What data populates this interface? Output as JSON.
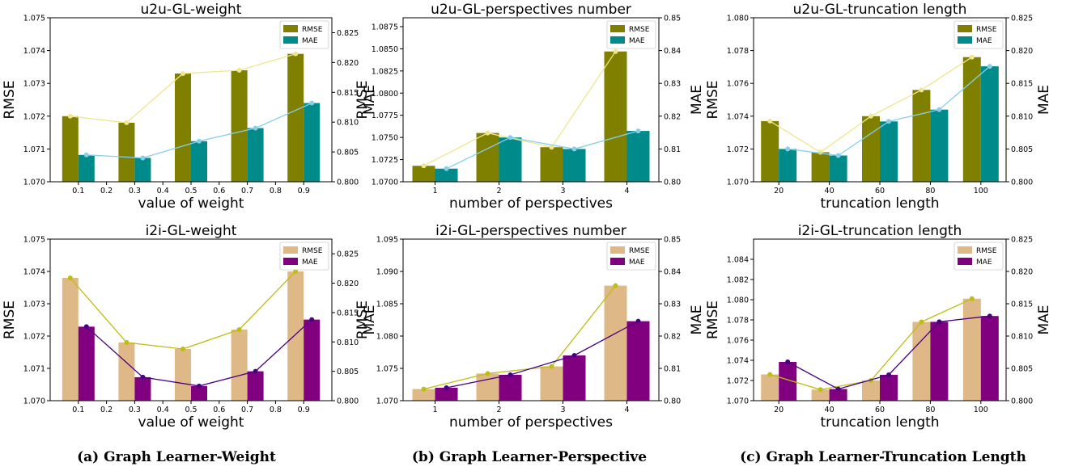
{
  "chart_data": [
    {
      "type": "bar",
      "title": "u2u-GL-weight",
      "xlabel": "value of weight",
      "ylabel": "RMSE",
      "y2label": "MAE",
      "x": [
        0.1,
        0.3,
        0.5,
        0.7,
        0.9
      ],
      "x_ticks": [
        "0.1",
        "0.2",
        "0.3",
        "0.4",
        "0.5",
        "0.6",
        "0.7",
        "0.8",
        "0.9"
      ],
      "x_range": [
        0,
        1.0
      ],
      "ylim": [
        1.07,
        1.075
      ],
      "y_ticks": [
        "1.070",
        "1.071",
        "1.072",
        "1.073",
        "1.074",
        "1.075"
      ],
      "y2lim": [
        0.8,
        0.8275
      ],
      "y2_ticks": [
        "0.800",
        "0.805",
        "0.810",
        "0.815",
        "0.820",
        "0.825"
      ],
      "series": [
        {
          "name": "RMSE",
          "axis": "left",
          "color": "#808000",
          "values": [
            1.072,
            1.0718,
            1.0733,
            1.0734,
            1.0739
          ],
          "line": [
            1.072,
            1.0718,
            1.0733,
            1.0734,
            1.0739
          ],
          "line_color": "#f0e68c"
        },
        {
          "name": "MAE",
          "axis": "right",
          "color": "#008b8b",
          "values": [
            0.8045,
            0.804,
            0.8068,
            0.809,
            0.8132
          ],
          "line": [
            0.8045,
            0.804,
            0.8068,
            0.809,
            0.8132
          ],
          "line_color": "#87ceeb"
        }
      ],
      "legend": "top-right",
      "grid": false
    },
    {
      "type": "bar",
      "title": "u2u-GL-perspectives number",
      "xlabel": "number of perspectives",
      "ylabel": "RMSE",
      "y2label": "MAE",
      "x": [
        1,
        2,
        3,
        4
      ],
      "x_ticks": [
        "1",
        "2",
        "3",
        "4"
      ],
      "x_range": [
        0.5,
        4.5
      ],
      "ylim": [
        1.07,
        1.0885
      ],
      "y_ticks": [
        "1.0700",
        "1.0725",
        "1.0750",
        "1.0775",
        "1.0800",
        "1.0825",
        "1.0850",
        "1.0875"
      ],
      "y2lim": [
        0.8,
        0.85
      ],
      "y2_ticks": [
        "0.80",
        "0.81",
        "0.82",
        "0.83",
        "0.84",
        "0.85"
      ],
      "series": [
        {
          "name": "RMSE",
          "axis": "left",
          "color": "#808000",
          "values": [
            1.0718,
            1.0755,
            1.0739,
            1.0847
          ],
          "line": [
            1.0718,
            1.0755,
            1.0739,
            1.0847
          ],
          "line_color": "#f0e68c"
        },
        {
          "name": "MAE",
          "axis": "right",
          "color": "#008b8b",
          "values": [
            0.804,
            0.8135,
            0.81,
            0.8155
          ],
          "line": [
            0.804,
            0.8135,
            0.81,
            0.8155
          ],
          "line_color": "#87ceeb"
        }
      ],
      "legend": "top-right",
      "grid": false
    },
    {
      "type": "bar",
      "title": "u2u-GL-truncation length",
      "xlabel": "truncation length",
      "ylabel": "RMSE",
      "y2label": "MAE",
      "x": [
        20,
        40,
        60,
        80,
        100
      ],
      "x_ticks": [
        "20",
        "40",
        "60",
        "80",
        "100"
      ],
      "x_range": [
        10,
        110
      ],
      "ylim": [
        1.07,
        1.08
      ],
      "y_ticks": [
        "1.070",
        "1.072",
        "1.074",
        "1.076",
        "1.078",
        "1.080"
      ],
      "y2lim": [
        0.8,
        0.825
      ],
      "y2_ticks": [
        "0.800",
        "0.805",
        "0.810",
        "0.815",
        "0.820",
        "0.825"
      ],
      "series": [
        {
          "name": "RMSE",
          "axis": "left",
          "color": "#808000",
          "values": [
            1.0737,
            1.0718,
            1.074,
            1.0756,
            1.0776
          ],
          "line": [
            1.0737,
            1.0718,
            1.074,
            1.0756,
            1.0776
          ],
          "line_color": "#f0e68c"
        },
        {
          "name": "MAE",
          "axis": "right",
          "color": "#008b8b",
          "values": [
            0.805,
            0.804,
            0.8092,
            0.811,
            0.8176
          ],
          "line": [
            0.805,
            0.804,
            0.8092,
            0.811,
            0.8176
          ],
          "line_color": "#87ceeb"
        }
      ],
      "legend": "top-right",
      "grid": false
    },
    {
      "type": "bar",
      "title": "i2i-GL-weight",
      "xlabel": "value of weight",
      "ylabel": "RMSE",
      "y2label": "MAE",
      "x": [
        0.1,
        0.3,
        0.5,
        0.7,
        0.9
      ],
      "x_ticks": [
        "0.1",
        "0.2",
        "0.3",
        "0.4",
        "0.5",
        "0.6",
        "0.7",
        "0.8",
        "0.9"
      ],
      "x_range": [
        0,
        1.0
      ],
      "ylim": [
        1.07,
        1.075
      ],
      "y_ticks": [
        "1.070",
        "1.071",
        "1.072",
        "1.073",
        "1.074",
        "1.075"
      ],
      "y2lim": [
        0.8,
        0.8275
      ],
      "y2_ticks": [
        "0.800",
        "0.805",
        "0.810",
        "0.815",
        "0.820",
        "0.825"
      ],
      "series": [
        {
          "name": "RMSE",
          "axis": "left",
          "color": "#deb887",
          "values": [
            1.0738,
            1.0718,
            1.0716,
            1.0722,
            1.074
          ],
          "line": [
            1.0738,
            1.0718,
            1.0716,
            1.0722,
            1.074
          ],
          "line_color": "#bdbd12"
        },
        {
          "name": "MAE",
          "axis": "right",
          "color": "#800080",
          "values": [
            0.8126,
            0.804,
            0.8025,
            0.805,
            0.8138
          ],
          "line": [
            0.8126,
            0.804,
            0.8025,
            0.805,
            0.8138
          ],
          "line_color": "#4b0082"
        }
      ],
      "legend": "top-right",
      "grid": false
    },
    {
      "type": "bar",
      "title": "i2i-GL-perspectives number",
      "xlabel": "number of perspectives",
      "ylabel": "RMSE",
      "y2label": "MAE",
      "x": [
        1,
        2,
        3,
        4
      ],
      "x_ticks": [
        "1",
        "2",
        "3",
        "4"
      ],
      "x_range": [
        0.5,
        4.5
      ],
      "ylim": [
        1.07,
        1.095
      ],
      "y_ticks": [
        "1.070",
        "1.075",
        "1.080",
        "1.085",
        "1.090",
        "1.095"
      ],
      "y2lim": [
        0.8,
        0.85
      ],
      "y2_ticks": [
        "0.80",
        "0.81",
        "0.82",
        "0.83",
        "0.84",
        "0.85"
      ],
      "series": [
        {
          "name": "RMSE",
          "axis": "left",
          "color": "#deb887",
          "values": [
            1.0718,
            1.0742,
            1.0753,
            1.0878
          ],
          "line": [
            1.0718,
            1.0742,
            1.0753,
            1.0878
          ],
          "line_color": "#bdbd12"
        },
        {
          "name": "MAE",
          "axis": "right",
          "color": "#800080",
          "values": [
            0.804,
            0.808,
            0.814,
            0.8246
          ],
          "line": [
            0.804,
            0.808,
            0.814,
            0.8246
          ],
          "line_color": "#4b0082"
        }
      ],
      "legend": "top-right",
      "grid": false
    },
    {
      "type": "bar",
      "title": "i2i-GL-truncation length",
      "xlabel": "truncation length",
      "ylabel": "RMSE",
      "y2label": "MAE",
      "x": [
        20,
        40,
        60,
        80,
        100
      ],
      "x_ticks": [
        "20",
        "40",
        "60",
        "80",
        "100"
      ],
      "x_range": [
        10,
        110
      ],
      "ylim": [
        1.07,
        1.086
      ],
      "y_ticks": [
        "1.070",
        "1.072",
        "1.074",
        "1.076",
        "1.078",
        "1.080",
        "1.082",
        "1.084"
      ],
      "y2lim": [
        0.8,
        0.825
      ],
      "y2_ticks": [
        "0.800",
        "0.805",
        "0.810",
        "0.815",
        "0.820",
        "0.825"
      ],
      "series": [
        {
          "name": "RMSE",
          "axis": "left",
          "color": "#deb887",
          "values": [
            1.0726,
            1.0711,
            1.072,
            1.0778,
            1.0801
          ],
          "line": [
            1.0726,
            1.0711,
            1.072,
            1.0778,
            1.0801
          ],
          "line_color": "#bdbd12"
        },
        {
          "name": "MAE",
          "axis": "right",
          "color": "#800080",
          "values": [
            0.806,
            0.8018,
            0.804,
            0.8122,
            0.8131
          ],
          "line": [
            0.806,
            0.8018,
            0.804,
            0.8122,
            0.8131
          ],
          "line_color": "#4b0082"
        }
      ],
      "legend": "top-right",
      "grid": false
    }
  ],
  "captions": [
    "(a) Graph Learner-Weight",
    "(b) Graph Learner-Perspective",
    "(c) Graph Learner-Truncation Length"
  ]
}
